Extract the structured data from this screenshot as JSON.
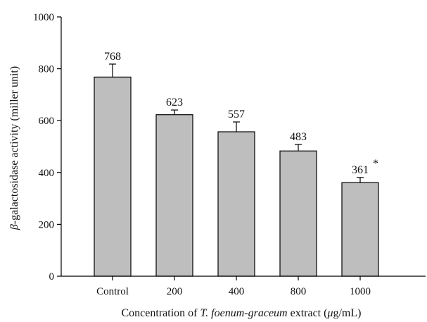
{
  "chart_data": {
    "type": "bar",
    "categories": [
      "Control",
      "200",
      "400",
      "800",
      "1000"
    ],
    "values": [
      768,
      623,
      557,
      483,
      361
    ],
    "error": [
      50,
      18,
      38,
      25,
      20
    ],
    "data_labels": [
      "768",
      "623",
      "557",
      "483",
      "361"
    ],
    "annotations": [
      {
        "category": "1000",
        "text": "*"
      }
    ],
    "ylabel_parts": {
      "symbol": "β",
      "text": "-galactosidase activity (miller unit)"
    },
    "xlabel_parts": {
      "before": "Concentration of ",
      "italic": "T. foenum-graceum",
      "middle": " extract (",
      "mu": "μ",
      "after": "g/mL)"
    },
    "ylim": [
      0,
      1000
    ],
    "yticks": [
      0,
      200,
      400,
      600,
      800,
      1000
    ],
    "ytick_labels": [
      "0",
      "200",
      "400",
      "600",
      "800",
      "1000"
    ],
    "grid": false,
    "bar_color": "#bebebe",
    "edge_color": "#000000"
  }
}
